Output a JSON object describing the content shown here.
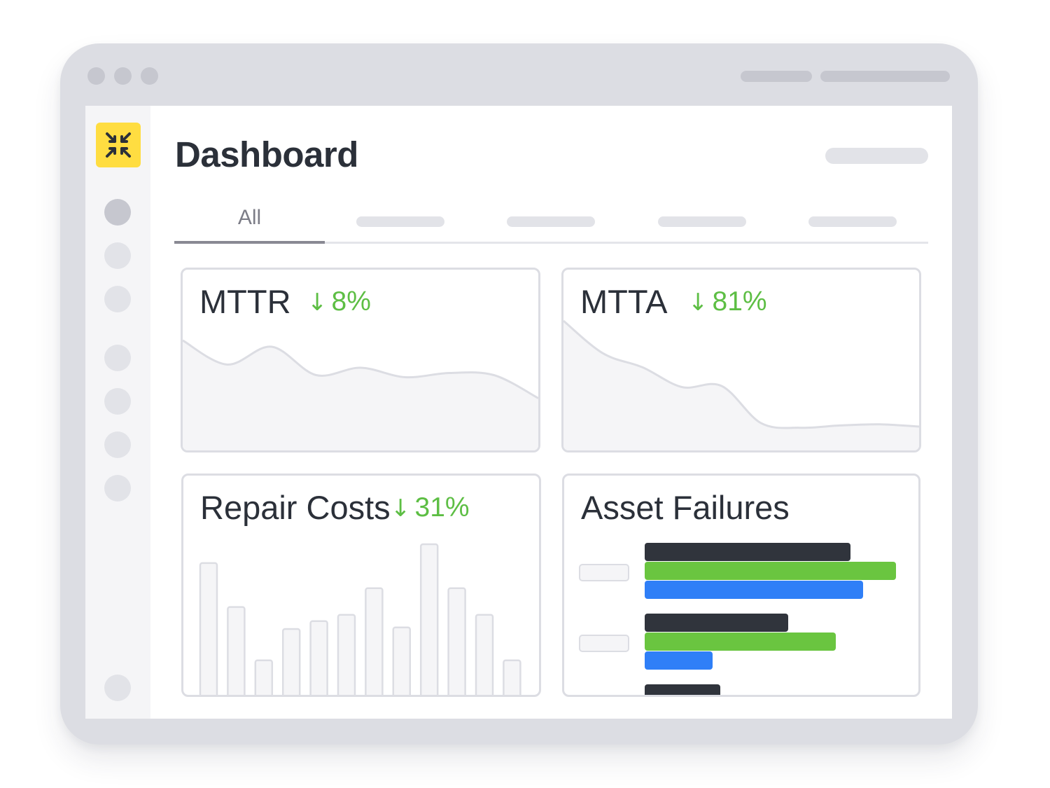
{
  "colors": {
    "frame": "#dcdde3",
    "sidebar": "#f5f5f7",
    "brand_yellow": "#ffdd41",
    "text_dark": "#2b3039",
    "delta_green": "#5dbe44",
    "bar_dark": "#30343c",
    "bar_green": "#6ac540",
    "bar_blue": "#2f7ff7"
  },
  "sidebar": {
    "logo_icon": "collapse-arrows-icon",
    "nav_items": 8
  },
  "header": {
    "title": "Dashboard"
  },
  "tabs": [
    {
      "label": "All",
      "selected": true
    },
    {
      "label": "",
      "selected": false
    },
    {
      "label": "",
      "selected": false
    },
    {
      "label": "",
      "selected": false
    },
    {
      "label": "",
      "selected": false
    }
  ],
  "cards": {
    "mttr": {
      "title": "MTTR",
      "arrow": "↓",
      "delta": "8%"
    },
    "mtta": {
      "title": "MTTA",
      "arrow": "↓",
      "delta": "81%"
    },
    "repair_costs": {
      "title": "Repair Costs",
      "arrow": "↓",
      "delta": "31%"
    },
    "asset_failures": {
      "title": "Asset Failures"
    }
  },
  "chart_data": [
    {
      "type": "area",
      "values": [
        78,
        55,
        72,
        45,
        52,
        43,
        47,
        45,
        23
      ]
    },
    {
      "type": "area",
      "values": [
        100,
        72,
        60,
        43,
        44,
        12,
        8,
        10,
        11,
        9
      ]
    },
    {
      "type": "bar",
      "values": [
        88,
        60,
        26,
        46,
        51,
        55,
        72,
        47,
        100,
        72,
        55,
        26
      ]
    },
    {
      "type": "bar",
      "orientation": "horizontal",
      "series": [
        {
          "values": [
            82,
            57,
            30
          ]
        },
        {
          "values": [
            100,
            76
          ]
        },
        {
          "values": [
            87,
            27
          ]
        }
      ]
    }
  ]
}
